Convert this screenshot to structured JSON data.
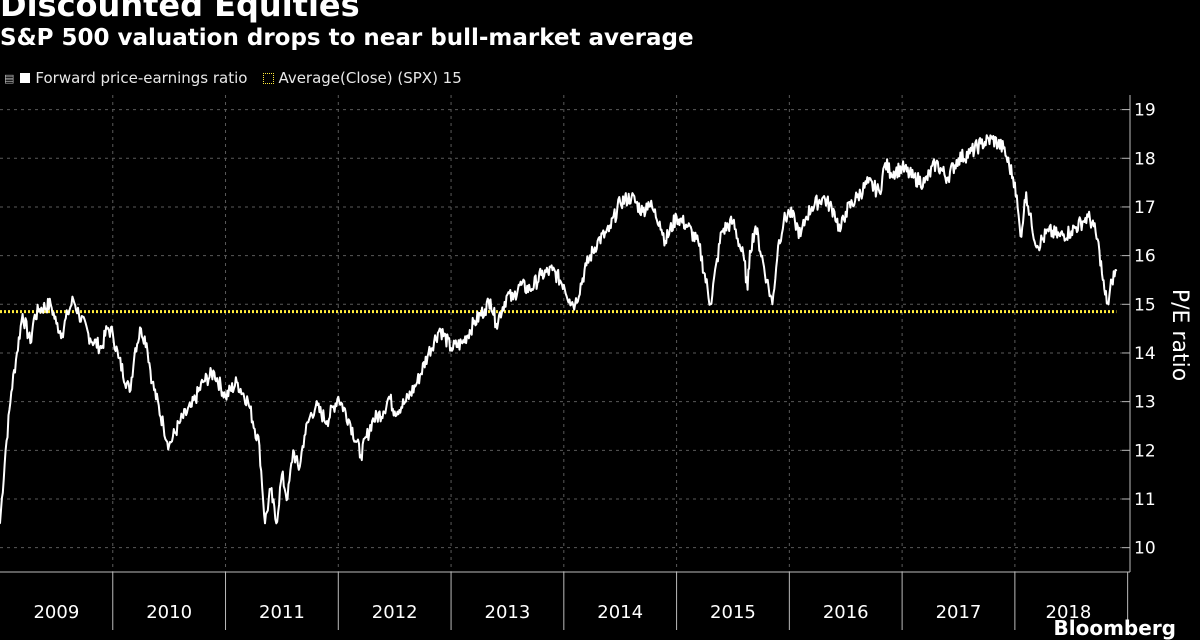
{
  "header": {
    "title": "Discounted Equities",
    "subtitle": "S&P 500 valuation drops to near bull-market average",
    "brand": "Bloomberg"
  },
  "legend": {
    "handle_icon": "drag-handle-icon",
    "series_label": "Forward price-earnings ratio",
    "average_label": "Average(Close) (SPX) 15"
  },
  "colors": {
    "background": "#000000",
    "series": "#ffffff",
    "average": "#ffeb3b",
    "grid": "#5a5a5a"
  },
  "chart_data": {
    "type": "line",
    "title": "Discounted Equities",
    "subtitle": "S&P 500 valuation drops to near bull-market average",
    "xlabel": "",
    "ylabel": "P/E ratio",
    "xlim": [
      2009.0,
      2018.95
    ],
    "ylim": [
      9.5,
      19.3
    ],
    "yticks": [
      10,
      11,
      12,
      13,
      14,
      15,
      16,
      17,
      18,
      19
    ],
    "categories": [
      "2009",
      "2010",
      "2011",
      "2012",
      "2013",
      "2014",
      "2015",
      "2016",
      "2017",
      "2018"
    ],
    "grid": true,
    "legend_position": "top-left",
    "series": [
      {
        "name": "Forward price-earnings ratio",
        "x": [
          2009.0,
          2009.05,
          2009.1,
          2009.15,
          2009.2,
          2009.27,
          2009.3,
          2009.35,
          2009.45,
          2009.5,
          2009.55,
          2009.6,
          2009.65,
          2009.7,
          2009.8,
          2009.9,
          2009.95,
          2010.0,
          2010.05,
          2010.15,
          2010.2,
          2010.25,
          2010.3,
          2010.35,
          2010.45,
          2010.5,
          2010.6,
          2010.7,
          2010.8,
          2010.9,
          2011.0,
          2011.1,
          2011.2,
          2011.3,
          2011.35,
          2011.4,
          2011.45,
          2011.5,
          2011.55,
          2011.6,
          2011.65,
          2011.7,
          2011.75,
          2011.8,
          2011.9,
          2012.0,
          2012.1,
          2012.2,
          2012.3,
          2012.4,
          2012.45,
          2012.5,
          2012.6,
          2012.7,
          2012.8,
          2012.9,
          2013.0,
          2013.1,
          2013.2,
          2013.3,
          2013.35,
          2013.4,
          2013.5,
          2013.55,
          2013.6,
          2013.7,
          2013.8,
          2013.9,
          2014.0,
          2014.05,
          2014.1,
          2014.2,
          2014.3,
          2014.4,
          2014.5,
          2014.6,
          2014.7,
          2014.75,
          2014.8,
          2014.85,
          2014.9,
          2015.0,
          2015.1,
          2015.2,
          2015.3,
          2015.4,
          2015.5,
          2015.6,
          2015.63,
          2015.65,
          2015.7,
          2015.8,
          2015.85,
          2015.9,
          2015.95,
          2016.0,
          2016.05,
          2016.1,
          2016.15,
          2016.2,
          2016.3,
          2016.4,
          2016.45,
          2016.5,
          2016.6,
          2016.7,
          2016.8,
          2016.85,
          2016.9,
          2017.0,
          2017.1,
          2017.2,
          2017.3,
          2017.4,
          2017.5,
          2017.6,
          2017.7,
          2017.8,
          2017.9,
          2018.0,
          2018.05,
          2018.08,
          2018.1,
          2018.15,
          2018.2,
          2018.3,
          2018.4,
          2018.5,
          2018.6,
          2018.65,
          2018.7,
          2018.75,
          2018.78,
          2018.8,
          2018.83,
          2018.86,
          2018.9
        ],
        "values": [
          10.5,
          12.0,
          13.2,
          14.0,
          14.8,
          14.2,
          14.7,
          14.9,
          15.0,
          14.6,
          14.4,
          14.8,
          15.1,
          14.8,
          14.3,
          14.1,
          14.5,
          14.4,
          13.9,
          13.2,
          14.1,
          14.5,
          14.2,
          13.4,
          12.5,
          12.1,
          12.6,
          12.9,
          13.4,
          13.6,
          13.1,
          13.4,
          13.0,
          12.1,
          10.5,
          11.2,
          10.5,
          11.5,
          11.0,
          12.0,
          11.6,
          12.3,
          12.7,
          12.9,
          12.6,
          13.1,
          12.6,
          11.9,
          12.6,
          12.8,
          13.1,
          12.8,
          13.0,
          13.4,
          14.0,
          14.5,
          14.1,
          14.2,
          14.6,
          14.9,
          15.1,
          14.6,
          15.2,
          15.1,
          15.4,
          15.3,
          15.6,
          15.7,
          15.4,
          15.1,
          15.0,
          15.8,
          16.3,
          16.5,
          17.1,
          17.2,
          16.9,
          17.1,
          16.9,
          16.7,
          16.3,
          16.8,
          16.6,
          16.2,
          15.0,
          16.5,
          16.7,
          15.9,
          15.3,
          16.1,
          16.6,
          15.5,
          15.0,
          16.2,
          16.7,
          16.9,
          16.7,
          16.4,
          16.8,
          17.0,
          17.2,
          16.9,
          16.5,
          16.9,
          17.2,
          17.5,
          17.3,
          17.9,
          17.7,
          17.8,
          17.6,
          17.5,
          17.9,
          17.6,
          18.0,
          18.1,
          18.3,
          18.4,
          18.2,
          17.5,
          16.4,
          16.9,
          17.3,
          16.6,
          16.2,
          16.5,
          16.4,
          16.5,
          16.7,
          16.8,
          16.6,
          16.1,
          15.5,
          15.2,
          15.0,
          15.5,
          15.7
        ]
      },
      {
        "name": "Average(Close) (SPX) 15",
        "x": [
          2009.0,
          2018.9
        ],
        "values": [
          14.85,
          14.85
        ]
      }
    ]
  }
}
